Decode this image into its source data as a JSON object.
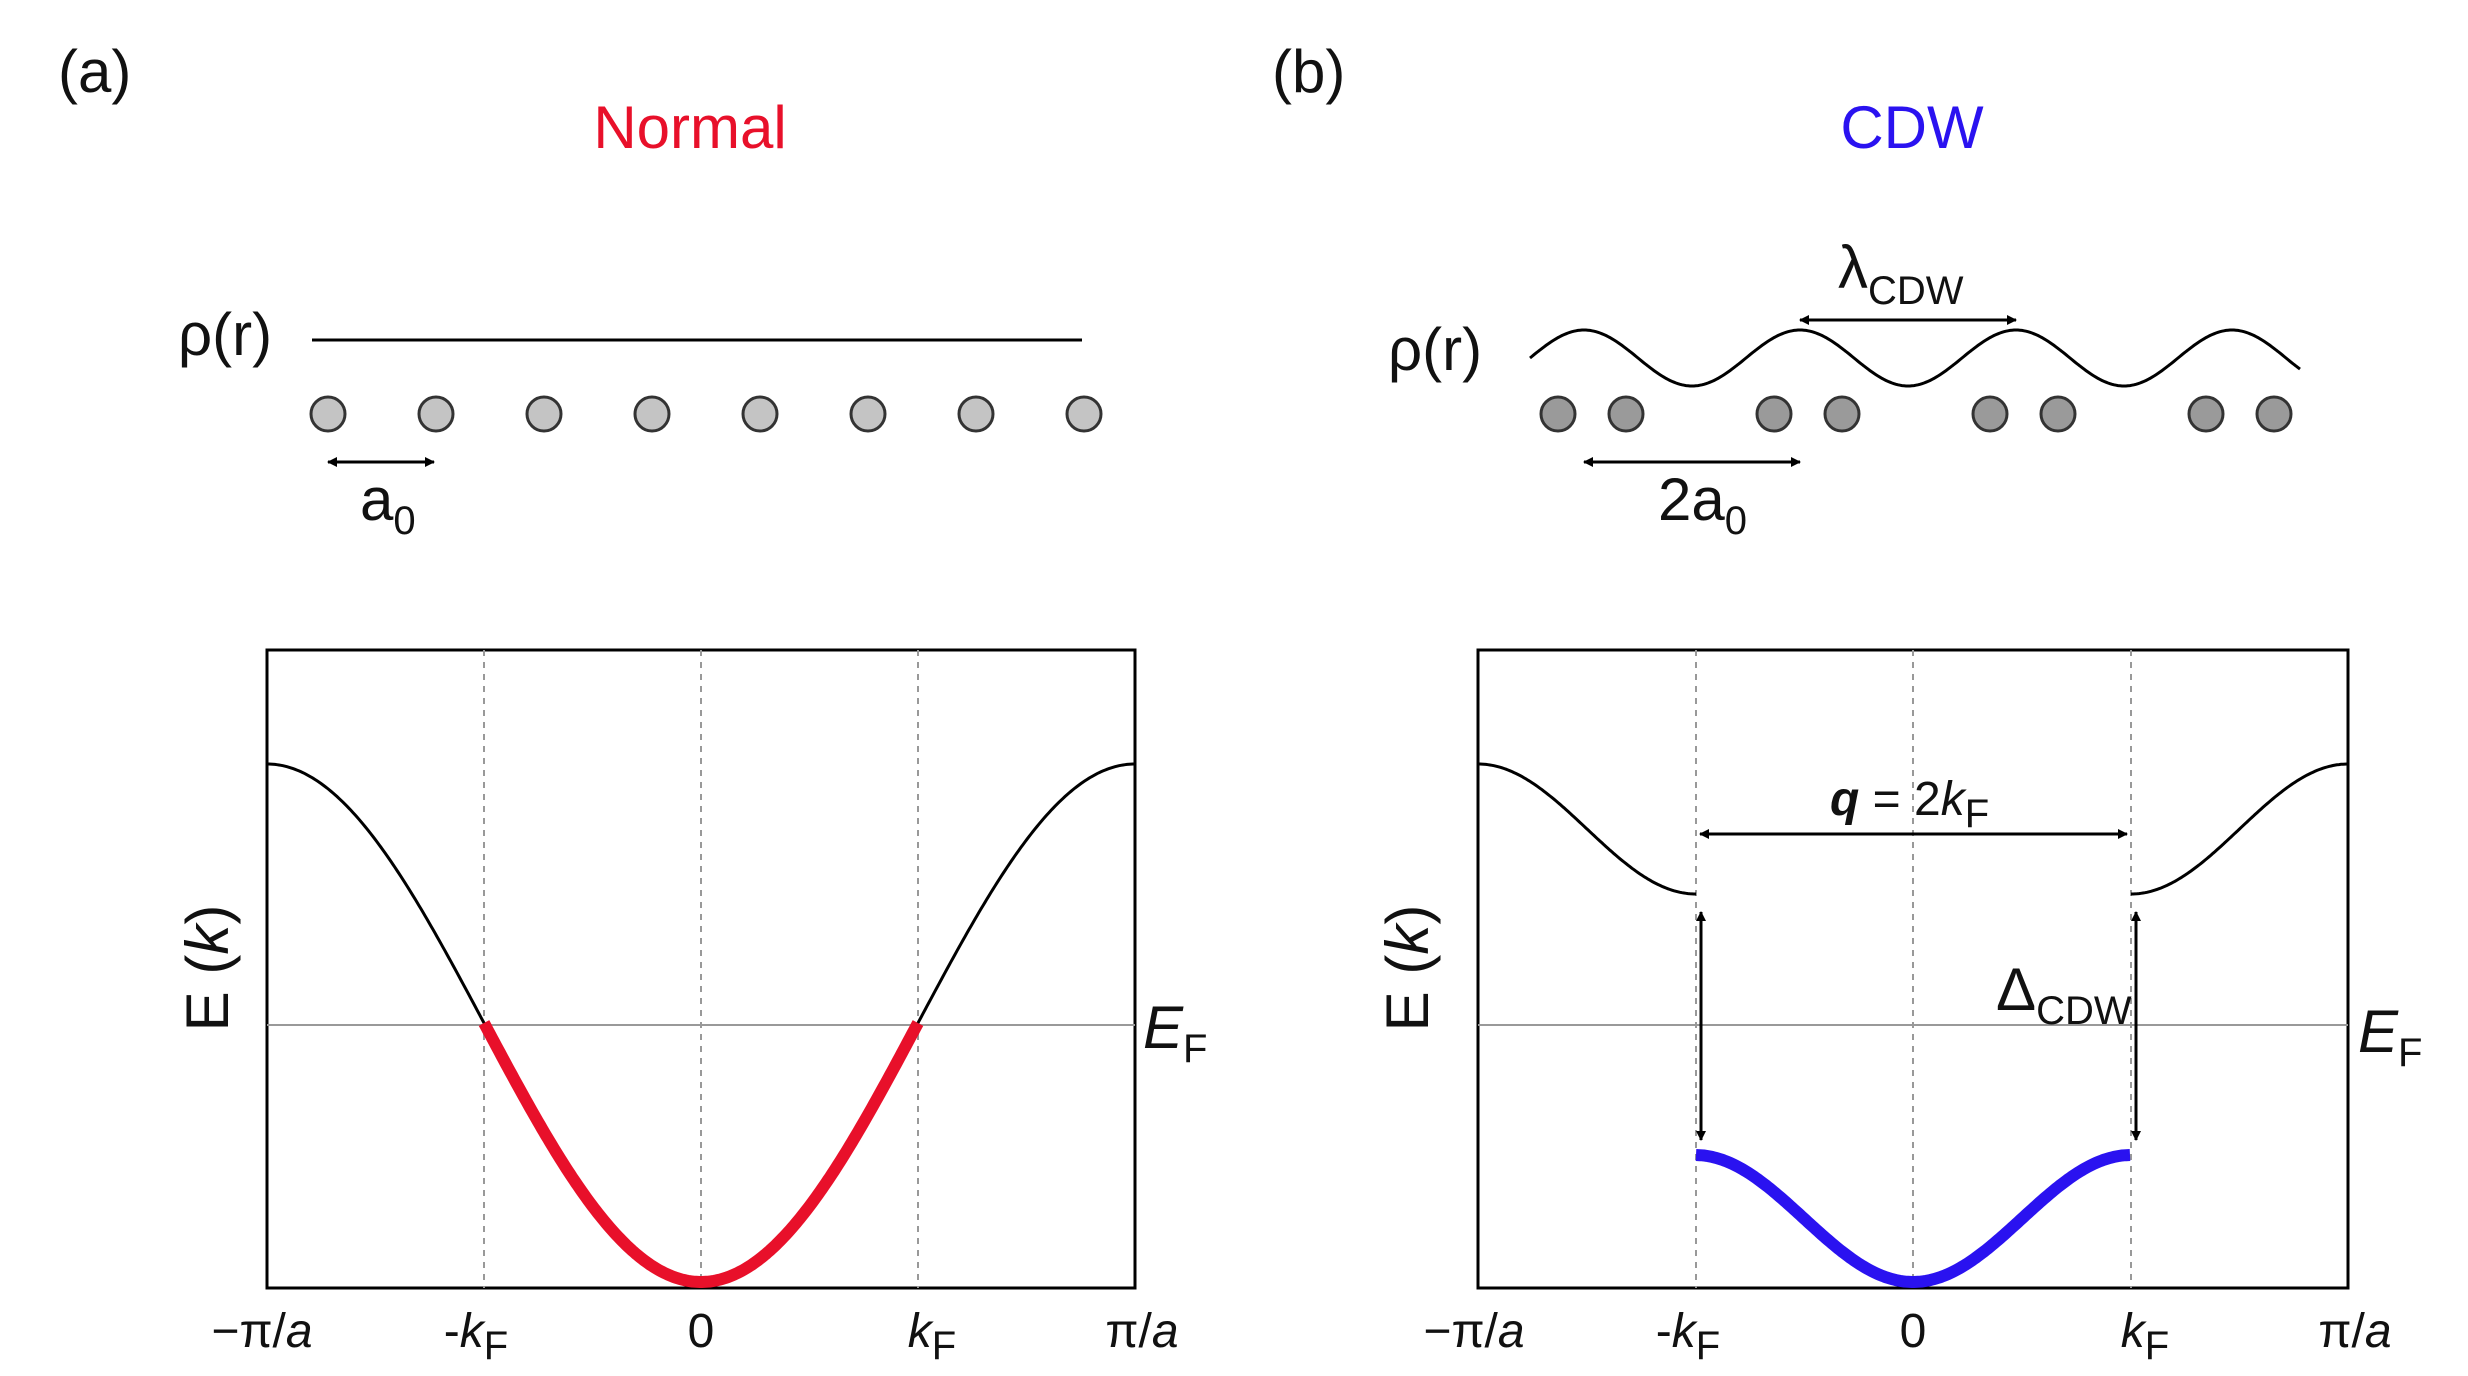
{
  "panel_a": {
    "letter": "(a)",
    "title": "Normal",
    "title_color": "#e8102a",
    "rho_label": "ρ(r)",
    "spacing_label": "a",
    "spacing_sub": "0",
    "atom_color": "#c4c4c4",
    "band_color": "#e8102a",
    "plot": {
      "ylabel_prefix": "E (",
      "ylabel_var": "k",
      "ylabel_suffix": ")",
      "ef_main": "E",
      "ef_sub": "F",
      "ticks": {
        "minus_pi_over_a": "−π/",
        "a_italic": "a",
        "minus_kF_prefix": "-",
        "k_italic": "k",
        "F_sub": "F",
        "zero": "0",
        "pi_over_a": "π/"
      }
    }
  },
  "panel_b": {
    "letter": "(b)",
    "title": "CDW",
    "title_color": "#2a12f0",
    "rho_label": "ρ(r)",
    "lambda_label": "λ",
    "lambda_sub": "CDW",
    "spacing_label": "2a",
    "spacing_sub": "0",
    "atom_color": "#9a9a9a",
    "band_color": "#2a12f0",
    "plot": {
      "ylabel_prefix": "E (",
      "ylabel_var": "k",
      "ylabel_suffix": ")",
      "ef_main": "E",
      "ef_sub": "F",
      "q_bold": "q",
      "q_eq": " = 2",
      "q_k": "k",
      "q_sub": "F",
      "gap_label": "Δ",
      "gap_sub": "CDW",
      "ticks": {
        "minus_pi_over_a": "−π/",
        "a_italic": "a",
        "minus_kF_prefix": "-",
        "k_italic": "k",
        "F_sub": "F",
        "zero": "0",
        "pi_over_a": "π/"
      }
    }
  }
}
